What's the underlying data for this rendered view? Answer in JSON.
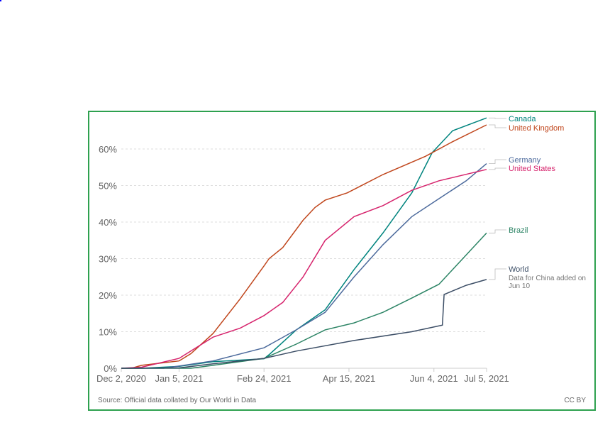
{
  "chart_data": {
    "type": "line",
    "title": "",
    "xlabel": "",
    "ylabel": "",
    "x_range": [
      "2020-12-02",
      "2021-07-05"
    ],
    "x_ticks": [
      {
        "date": "2020-12-02",
        "label": "Dec 2, 2020"
      },
      {
        "date": "2021-01-05",
        "label": "Jan 5, 2021"
      },
      {
        "date": "2021-02-24",
        "label": "Feb 24, 2021"
      },
      {
        "date": "2021-04-15",
        "label": "Apr 15, 2021"
      },
      {
        "date": "2021-06-04",
        "label": "Jun 4, 2021"
      },
      {
        "date": "2021-07-05",
        "label": "Jul 5, 2021"
      }
    ],
    "ylim": [
      0,
      66
    ],
    "y_ticks": [
      {
        "value": 0,
        "label": "0%"
      },
      {
        "value": 10,
        "label": "10%"
      },
      {
        "value": 20,
        "label": "20%"
      },
      {
        "value": 30,
        "label": "30%"
      },
      {
        "value": 40,
        "label": "40%"
      },
      {
        "value": 50,
        "label": "50%"
      },
      {
        "value": 60,
        "label": "60%"
      }
    ],
    "grid": "horizontal-dashed",
    "legend": "right, line-end labels",
    "series": [
      {
        "name": "Canada",
        "color": "#00847e",
        "points": [
          [
            "2020-12-02",
            0
          ],
          [
            "2020-12-14",
            0
          ],
          [
            "2021-01-05",
            0.5
          ],
          [
            "2021-01-25",
            1.8
          ],
          [
            "2021-02-24",
            2.6
          ],
          [
            "2021-02-27",
            3.7
          ],
          [
            "2021-03-15",
            10.5
          ],
          [
            "2021-04-01",
            16
          ],
          [
            "2021-04-18",
            27
          ],
          [
            "2021-05-05",
            37
          ],
          [
            "2021-05-22",
            48
          ],
          [
            "2021-06-03",
            59
          ],
          [
            "2021-06-15",
            65
          ],
          [
            "2021-07-05",
            68.5
          ]
        ]
      },
      {
        "name": "United Kingdom",
        "color": "#c0461c",
        "points": [
          [
            "2020-12-02",
            0
          ],
          [
            "2020-12-08",
            0
          ],
          [
            "2020-12-14",
            0.8
          ],
          [
            "2021-01-05",
            2
          ],
          [
            "2021-01-12",
            4
          ],
          [
            "2021-01-25",
            9.5
          ],
          [
            "2021-02-10",
            19
          ],
          [
            "2021-02-24",
            28
          ],
          [
            "2021-02-27",
            30
          ],
          [
            "2021-03-07",
            33
          ],
          [
            "2021-03-19",
            40.5
          ],
          [
            "2021-03-26",
            44
          ],
          [
            "2021-04-01",
            46
          ],
          [
            "2021-04-14",
            48
          ],
          [
            "2021-05-05",
            53
          ],
          [
            "2021-05-30",
            58
          ],
          [
            "2021-06-15",
            62
          ],
          [
            "2021-07-05",
            66.6
          ]
        ]
      },
      {
        "name": "Germany",
        "color": "#4c6a9c",
        "points": [
          [
            "2020-12-02",
            0
          ],
          [
            "2020-12-27",
            0
          ],
          [
            "2021-01-05",
            0.6
          ],
          [
            "2021-01-25",
            2
          ],
          [
            "2021-02-24",
            5.6
          ],
          [
            "2021-03-15",
            10.5
          ],
          [
            "2021-04-01",
            15.3
          ],
          [
            "2021-04-18",
            25
          ],
          [
            "2021-05-05",
            33.8
          ],
          [
            "2021-05-22",
            41.5
          ],
          [
            "2021-06-07",
            46.4
          ],
          [
            "2021-06-23",
            51.3
          ],
          [
            "2021-07-05",
            56
          ]
        ]
      },
      {
        "name": "United States",
        "color": "#d6246d",
        "points": [
          [
            "2020-12-02",
            0
          ],
          [
            "2020-12-14",
            0.3
          ],
          [
            "2021-01-05",
            2.7
          ],
          [
            "2021-01-25",
            8.5
          ],
          [
            "2021-02-10",
            11
          ],
          [
            "2021-02-24",
            14.4
          ],
          [
            "2021-03-07",
            18
          ],
          [
            "2021-03-19",
            25
          ],
          [
            "2021-04-01",
            35
          ],
          [
            "2021-04-18",
            41.5
          ],
          [
            "2021-05-05",
            44.5
          ],
          [
            "2021-05-22",
            48.7
          ],
          [
            "2021-06-07",
            51.3
          ],
          [
            "2021-07-05",
            54.4
          ]
        ]
      },
      {
        "name": "Brazil",
        "color": "#2c8465",
        "points": [
          [
            "2020-12-02",
            0
          ],
          [
            "2021-01-12",
            0
          ],
          [
            "2021-01-25",
            0.8
          ],
          [
            "2021-02-24",
            2.7
          ],
          [
            "2021-03-15",
            6.6
          ],
          [
            "2021-04-01",
            10.5
          ],
          [
            "2021-04-18",
            12.4
          ],
          [
            "2021-05-05",
            15.3
          ],
          [
            "2021-05-22",
            19.2
          ],
          [
            "2021-06-07",
            23
          ],
          [
            "2021-06-19",
            29
          ],
          [
            "2021-07-05",
            37
          ]
        ]
      },
      {
        "name": "World",
        "note": "Data for China added on Jun 10",
        "color": "#3c4e66",
        "points": [
          [
            "2020-12-02",
            0
          ],
          [
            "2021-01-05",
            0.1
          ],
          [
            "2021-01-25",
            1.2
          ],
          [
            "2021-02-24",
            2.7
          ],
          [
            "2021-03-15",
            4.7
          ],
          [
            "2021-04-18",
            7.6
          ],
          [
            "2021-05-22",
            10
          ],
          [
            "2021-06-09",
            11.8
          ],
          [
            "2021-06-10",
            20.2
          ],
          [
            "2021-06-23",
            22.7
          ],
          [
            "2021-07-05",
            24.3
          ]
        ]
      }
    ],
    "source": "Source: Official data collated by Our World in Data",
    "license": "CC BY"
  }
}
